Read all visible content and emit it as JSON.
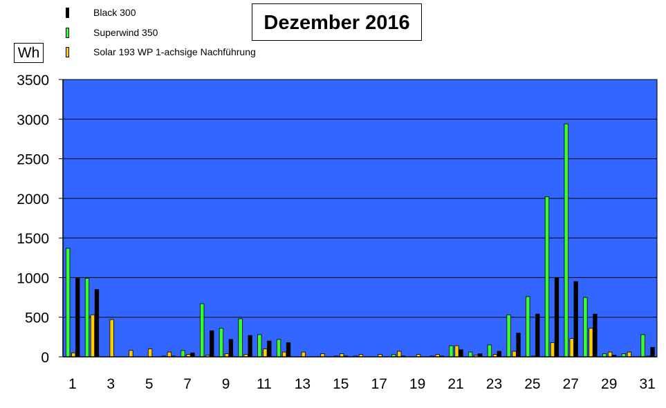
{
  "chart_data": {
    "type": "bar",
    "title": "Dezember 2016",
    "ylabel": "Wh",
    "xlabel": "",
    "ylim": [
      0,
      3500
    ],
    "yticks": [
      0,
      500,
      1000,
      1500,
      2000,
      2500,
      3000,
      3500
    ],
    "categories": [
      1,
      2,
      3,
      4,
      5,
      6,
      7,
      8,
      9,
      10,
      11,
      12,
      13,
      14,
      15,
      16,
      17,
      18,
      19,
      20,
      21,
      22,
      23,
      24,
      25,
      26,
      27,
      28,
      29,
      30,
      31
    ],
    "x_tick_labels": [
      "1",
      "3",
      "5",
      "7",
      "9",
      "11",
      "13",
      "15",
      "17",
      "19",
      "21",
      "23",
      "25",
      "27",
      "29",
      "31"
    ],
    "grid": true,
    "legend_position": "top-left",
    "plot_background": "#3366ff",
    "series": [
      {
        "name": "Superwind 350",
        "color": "#33ff33",
        "values": [
          1370,
          990,
          0,
          0,
          0,
          10,
          80,
          670,
          360,
          480,
          280,
          220,
          0,
          0,
          10,
          10,
          0,
          30,
          0,
          10,
          140,
          60,
          150,
          530,
          760,
          2020,
          2940,
          750,
          40,
          40,
          280
        ]
      },
      {
        "name": "Solar 193 WP 1-achsige Nachführung",
        "color": "#ffcc00",
        "values": [
          50,
          530,
          470,
          80,
          100,
          60,
          30,
          20,
          40,
          30,
          100,
          60,
          60,
          40,
          40,
          30,
          30,
          70,
          30,
          30,
          140,
          20,
          30,
          70,
          10,
          180,
          230,
          360,
          60,
          60,
          10
        ]
      },
      {
        "name": "Black 300",
        "color": "#000000",
        "values": [
          1000,
          850,
          0,
          0,
          0,
          10,
          50,
          330,
          220,
          270,
          200,
          180,
          0,
          0,
          10,
          0,
          0,
          10,
          0,
          10,
          90,
          40,
          70,
          300,
          540,
          1000,
          950,
          540,
          20,
          0,
          120
        ]
      }
    ]
  },
  "legend": {
    "items": [
      {
        "label": "Black 300",
        "color": "#000000"
      },
      {
        "label": "Superwind 350",
        "color": "#33ff33"
      },
      {
        "label": "Solar 193 WP 1-achsige Nachführung",
        "color": "#ffcc00"
      }
    ]
  }
}
